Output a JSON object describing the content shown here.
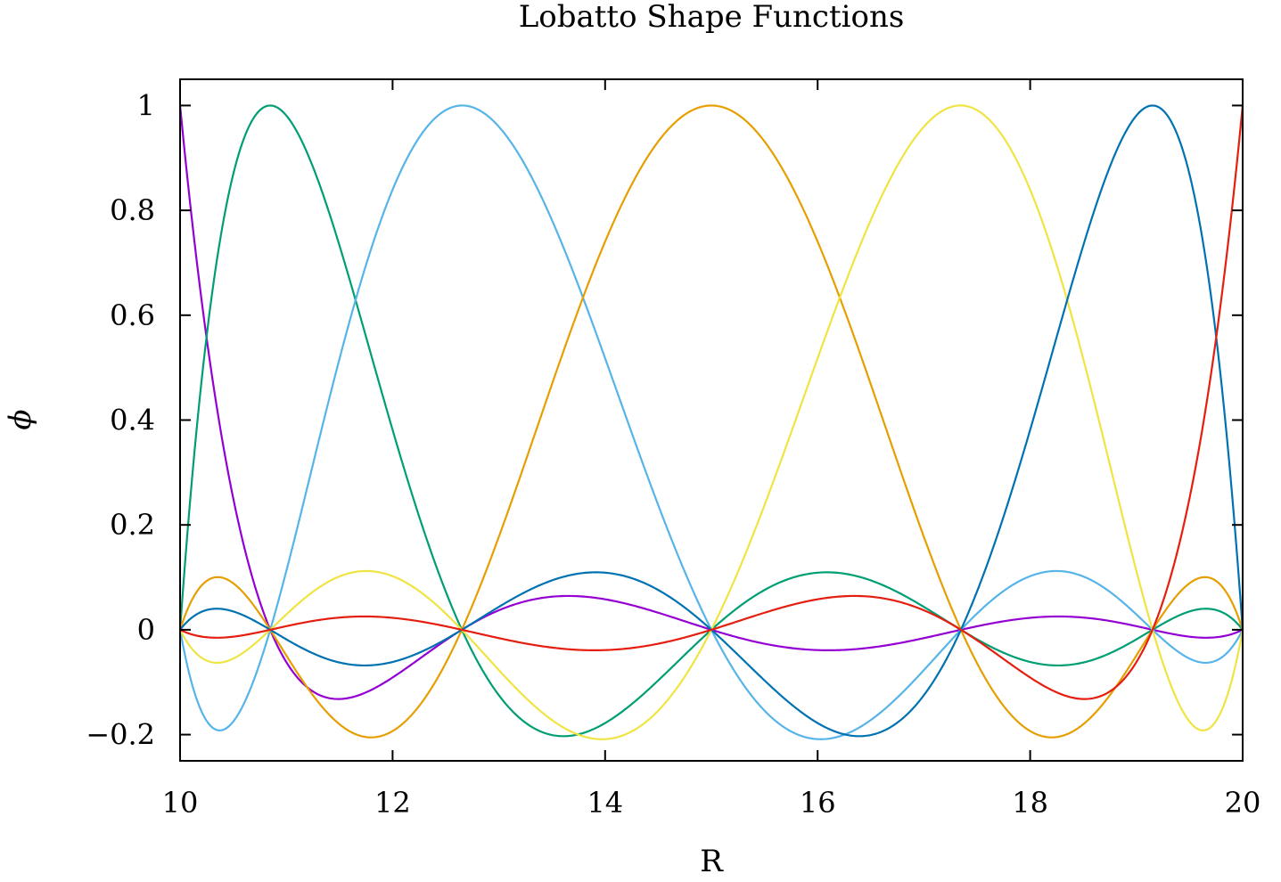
{
  "chart_data": {
    "type": "line",
    "title": "Lobatto Shape Functions",
    "xlabel": "R",
    "ylabel": "ϕ",
    "xlim": [
      10,
      20
    ],
    "ylim": [
      -0.25,
      1.05
    ],
    "xticks": [
      10,
      12,
      14,
      16,
      18,
      20
    ],
    "xtick_labels": [
      "10",
      "12",
      "14",
      "16",
      "18",
      "20"
    ],
    "yticks": [
      -0.2,
      0,
      0.2,
      0.4,
      0.6,
      0.8,
      1
    ],
    "ytick_labels": [
      "−0.2",
      "0",
      "0.2",
      "0.4",
      "0.6",
      "0.8",
      "1"
    ],
    "grid": false,
    "legend": "none",
    "nodes": [
      10,
      10.8484,
      12.6515,
      15,
      17.3485,
      19.1516,
      20
    ],
    "series": [
      {
        "node_index": 0,
        "color": "#9400d3"
      },
      {
        "node_index": 1,
        "color": "#009e73"
      },
      {
        "node_index": 2,
        "color": "#56b4e9"
      },
      {
        "node_index": 3,
        "color": "#e69f00"
      },
      {
        "node_index": 4,
        "color": "#f0e442"
      },
      {
        "node_index": 5,
        "color": "#0072b2"
      },
      {
        "node_index": 6,
        "color": "#e51e10"
      }
    ]
  }
}
